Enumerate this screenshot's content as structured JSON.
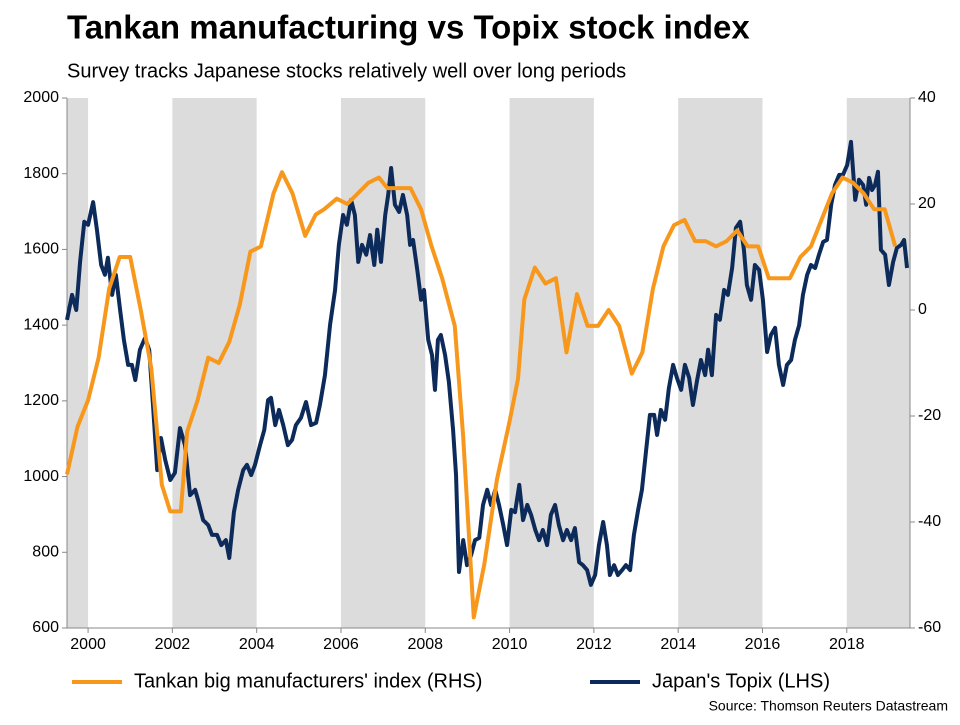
{
  "chart_data": {
    "type": "line",
    "title": "Tankan manufacturing vs Topix stock index",
    "subtitle": "Survey tracks Japanese stocks relatively well over long periods",
    "source": "Source: Thomson Reuters Datastream",
    "xlim": [
      1999.5,
      2019.5
    ],
    "xticks": [
      2000,
      2002,
      2004,
      2006,
      2008,
      2010,
      2012,
      2014,
      2016,
      2018
    ],
    "ylim": [
      600,
      2000
    ],
    "yticks": [
      600,
      800,
      1000,
      1200,
      1400,
      1600,
      1800,
      2000
    ],
    "y2lim": [
      -60,
      40
    ],
    "y2ticks": [
      -60,
      -40,
      -20,
      0,
      20,
      40
    ],
    "shading_color": "#dcdcdc",
    "series": [
      {
        "name": "Tankan big manufacturers' index (RHS)",
        "color": "#f7981d",
        "axis": "y2",
        "x": [
          1999.5,
          1999.75,
          2000.0,
          2000.25,
          2000.5,
          2000.75,
          2001.0,
          2001.25,
          2001.5,
          2001.75,
          2001.95,
          2002.2,
          2002.35,
          2002.6,
          2002.85,
          2003.1,
          2003.35,
          2003.6,
          2003.85,
          2004.1,
          2004.4,
          2004.6,
          2004.85,
          2005.15,
          2005.4,
          2005.6,
          2005.9,
          2006.15,
          2006.4,
          2006.65,
          2006.9,
          2007.1,
          2007.4,
          2007.65,
          2007.9,
          2008.15,
          2008.4,
          2008.7,
          2008.9,
          2009.15,
          2009.4,
          2009.7,
          2010.0,
          2010.2,
          2010.35,
          2010.6,
          2010.85,
          2011.1,
          2011.35,
          2011.6,
          2011.85,
          2012.1,
          2012.35,
          2012.6,
          2012.9,
          2013.15,
          2013.4,
          2013.65,
          2013.9,
          2014.15,
          2014.4,
          2014.65,
          2014.9,
          2015.15,
          2015.4,
          2015.65,
          2015.9,
          2016.15,
          2016.4,
          2016.65,
          2016.9,
          2017.15,
          2017.4,
          2017.65,
          2017.9,
          2018.15,
          2018.4,
          2018.65,
          2018.9,
          2019.15
        ],
        "values": [
          -31,
          -22,
          -17,
          -9,
          4,
          10,
          10,
          0,
          -11,
          -33,
          -38,
          -38,
          -23,
          -17,
          -9,
          -10,
          -6,
          1,
          11,
          12,
          22,
          26,
          22,
          14,
          18,
          19,
          21,
          20,
          22,
          24,
          25,
          23,
          23,
          23,
          19,
          12,
          6,
          -3,
          -24,
          -58,
          -48,
          -32,
          -21,
          -13,
          2,
          8,
          5,
          6,
          -8,
          3,
          -3,
          -3,
          0,
          -3,
          -12,
          -8,
          4,
          12,
          16,
          17,
          13,
          13,
          12,
          13,
          15,
          12,
          12,
          6,
          6,
          6,
          10,
          12,
          17,
          22,
          25,
          24,
          22,
          19,
          19,
          12
        ]
      },
      {
        "name": "Japan's Topix (LHS)",
        "color": "#0d2b5a",
        "axis": "y",
        "x": [
          1999.5,
          1999.62,
          1999.72,
          1999.81,
          1999.91,
          2000.0,
          2000.12,
          2000.21,
          2000.31,
          2000.4,
          2000.47,
          2000.57,
          2000.66,
          2000.76,
          2000.85,
          2000.95,
          2001.04,
          2001.12,
          2001.23,
          2001.35,
          2001.45,
          2001.54,
          2001.64,
          2001.73,
          2001.83,
          2001.95,
          2002.06,
          2002.18,
          2002.3,
          2002.42,
          2002.54,
          2002.61,
          2002.73,
          2002.85,
          2002.94,
          2003.06,
          2003.16,
          2003.27,
          2003.35,
          2003.46,
          2003.56,
          2003.68,
          2003.77,
          2003.87,
          2003.96,
          2004.08,
          2004.18,
          2004.27,
          2004.34,
          2004.44,
          2004.53,
          2004.63,
          2004.74,
          2004.84,
          2004.93,
          2005.05,
          2005.17,
          2005.29,
          2005.41,
          2005.5,
          2005.62,
          2005.74,
          2005.86,
          2005.95,
          2006.05,
          2006.14,
          2006.24,
          2006.33,
          2006.41,
          2006.5,
          2006.6,
          2006.69,
          2006.79,
          2006.86,
          2006.95,
          2007.05,
          2007.12,
          2007.19,
          2007.28,
          2007.38,
          2007.47,
          2007.57,
          2007.64,
          2007.71,
          2007.81,
          2007.9,
          2007.97,
          2008.07,
          2008.16,
          2008.23,
          2008.3,
          2008.37,
          2008.47,
          2008.56,
          2008.66,
          2008.73,
          2008.8,
          2008.9,
          2008.99,
          2009.09,
          2009.18,
          2009.28,
          2009.37,
          2009.47,
          2009.56,
          2009.66,
          2009.75,
          2009.85,
          2009.94,
          2010.04,
          2010.13,
          2010.23,
          2010.32,
          2010.42,
          2010.51,
          2010.61,
          2010.7,
          2010.79,
          2010.89,
          2010.98,
          2011.08,
          2011.17,
          2011.27,
          2011.36,
          2011.46,
          2011.55,
          2011.65,
          2011.74,
          2011.84,
          2011.93,
          2012.03,
          2012.12,
          2012.22,
          2012.31,
          2012.38,
          2012.48,
          2012.57,
          2012.67,
          2012.76,
          2012.86,
          2012.95,
          2013.05,
          2013.14,
          2013.24,
          2013.33,
          2013.43,
          2013.5,
          2013.59,
          2013.69,
          2013.78,
          2013.88,
          2013.97,
          2014.07,
          2014.16,
          2014.26,
          2014.35,
          2014.45,
          2014.54,
          2014.64,
          2014.71,
          2014.8,
          2014.9,
          2014.99,
          2015.09,
          2015.18,
          2015.28,
          2015.37,
          2015.47,
          2015.56,
          2015.63,
          2015.73,
          2015.82,
          2015.92,
          2016.01,
          2016.11,
          2016.2,
          2016.3,
          2016.39,
          2016.49,
          2016.58,
          2016.68,
          2016.77,
          2016.87,
          2016.96,
          2017.06,
          2017.15,
          2017.25,
          2017.34,
          2017.44,
          2017.53,
          2017.63,
          2017.72,
          2017.82,
          2017.91,
          2018.01,
          2018.1,
          2018.2,
          2018.29,
          2018.39,
          2018.46,
          2018.53,
          2018.6,
          2018.67,
          2018.74,
          2018.81,
          2018.91,
          2019.0,
          2019.1,
          2019.19,
          2019.29,
          2019.36,
          2019.43
        ],
        "values": [
          1414,
          1480,
          1440,
          1567,
          1673,
          1665,
          1725,
          1652,
          1559,
          1533,
          1578,
          1480,
          1533,
          1440,
          1361,
          1295,
          1295,
          1255,
          1335,
          1366,
          1335,
          1189,
          1017,
          1102,
          1044,
          991,
          1010,
          1128,
          1083,
          951,
          965,
          938,
          885,
          872,
          846,
          846,
          819,
          832,
          785,
          906,
          965,
          1017,
          1031,
          1004,
          1031,
          1083,
          1123,
          1202,
          1208,
          1136,
          1176,
          1136,
          1083,
          1097,
          1136,
          1155,
          1197,
          1136,
          1142,
          1189,
          1268,
          1400,
          1493,
          1612,
          1691,
          1665,
          1731,
          1691,
          1567,
          1612,
          1586,
          1638,
          1559,
          1652,
          1567,
          1691,
          1744,
          1815,
          1718,
          1699,
          1744,
          1691,
          1612,
          1625,
          1546,
          1467,
          1493,
          1361,
          1321,
          1229,
          1361,
          1374,
          1321,
          1250,
          1123,
          1004,
          748,
          832,
          766,
          793,
          832,
          838,
          925,
          965,
          925,
          965,
          925,
          872,
          819,
          912,
          906,
          978,
          885,
          925,
          899,
          859,
          832,
          859,
          819,
          899,
          925,
          872,
          832,
          859,
          832,
          864,
          774,
          766,
          753,
          714,
          740,
          819,
          880,
          819,
          740,
          766,
          740,
          753,
          766,
          753,
          846,
          912,
          965,
          1070,
          1163,
          1163,
          1110,
          1176,
          1150,
          1234,
          1295,
          1261,
          1229,
          1295,
          1261,
          1189,
          1255,
          1308,
          1268,
          1335,
          1268,
          1427,
          1414,
          1493,
          1480,
          1551,
          1657,
          1673,
          1599,
          1506,
          1467,
          1559,
          1546,
          1467,
          1329,
          1374,
          1393,
          1295,
          1242,
          1295,
          1308,
          1361,
          1400,
          1480,
          1533,
          1559,
          1551,
          1586,
          1620,
          1625,
          1718,
          1770,
          1797,
          1797,
          1823,
          1884,
          1731,
          1784,
          1770,
          1718,
          1789,
          1757,
          1770,
          1805,
          1599,
          1586,
          1506,
          1567,
          1604,
          1612,
          1625,
          1551
        ]
      }
    ]
  }
}
